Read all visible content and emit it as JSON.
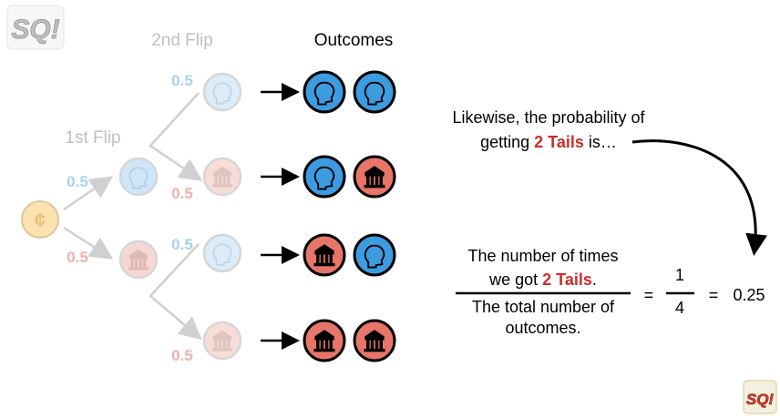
{
  "logo": {
    "text": "SQ!",
    "small_text": "SQ!",
    "icon": "statquest-logo"
  },
  "tree": {
    "first_flip_label": "1st Flip",
    "second_flip_label": "2nd Flip",
    "outcomes_label": "Outcomes",
    "probabilities": {
      "first_heads": "0.5",
      "first_tails": "0.5",
      "second_top": "0.5",
      "second_upper_mid": "0.5",
      "second_lower_mid": "0.5",
      "second_bottom": "0.5"
    },
    "coin_symbol": "¢",
    "outcomes": [
      [
        "heads",
        "heads"
      ],
      [
        "heads",
        "tails"
      ],
      [
        "tails",
        "heads"
      ],
      [
        "tails",
        "tails"
      ]
    ]
  },
  "explanation": {
    "line1": "Likewise, the probability of",
    "line2_prefix": "getting ",
    "line2_highlight": "2 Tails",
    "line2_suffix": " is…"
  },
  "formula": {
    "num_line1": "The number of times",
    "num_line2_prefix": "we got ",
    "num_line2_highlight": "2 Tails",
    "num_line2_suffix": ".",
    "den_line1": "The total number of",
    "den_line2": "outcomes.",
    "equals1": "=",
    "frac_num": "1",
    "frac_den": "4",
    "equals2": "=",
    "result": "0.25"
  },
  "colors": {
    "heads": "#3d9be0",
    "tails": "#e8756a",
    "coin": "#f5c25a",
    "highlight": "#c9302c",
    "faded_text": "#bdbdbd",
    "faded_blue": "#a8d2f0",
    "faded_red": "#f2b0aa"
  }
}
